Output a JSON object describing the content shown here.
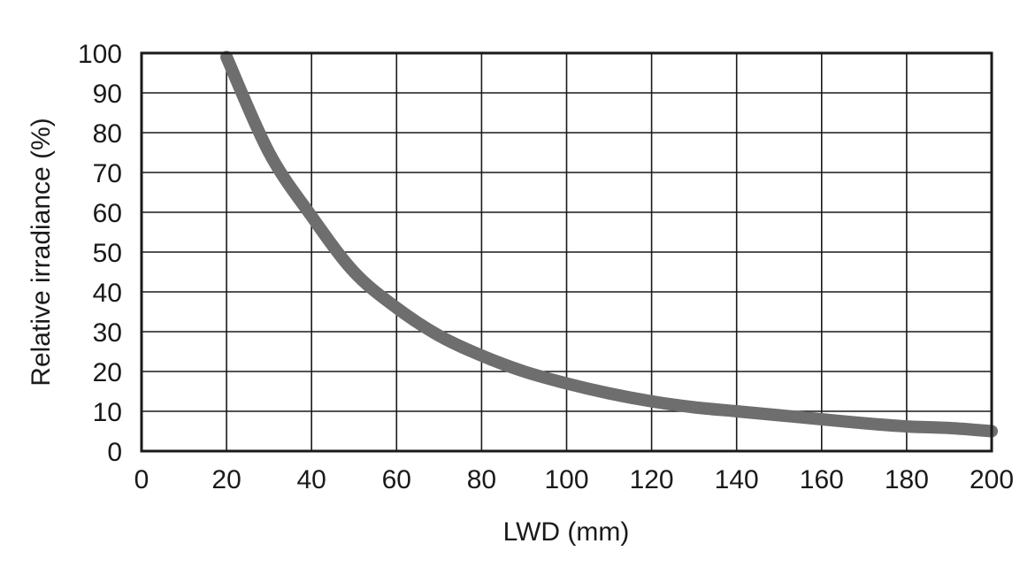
{
  "chart_data": {
    "type": "line",
    "title": "",
    "xlabel": "LWD (mm)",
    "ylabel": "Relative irradiance (%)",
    "xlim": [
      0,
      200
    ],
    "ylim": [
      0,
      100
    ],
    "xticks": [
      0,
      20,
      40,
      60,
      80,
      100,
      120,
      140,
      160,
      180,
      200
    ],
    "yticks": [
      0,
      10,
      20,
      30,
      40,
      50,
      60,
      70,
      80,
      90,
      100
    ],
    "grid": true,
    "series": [
      {
        "x": [
          20,
          30,
          40,
          50,
          60,
          70,
          80,
          90,
          100,
          110,
          120,
          130,
          140,
          150,
          160,
          170,
          180,
          190,
          200
        ],
        "y": [
          99,
          75,
          59,
          45,
          36,
          29,
          24,
          20,
          17,
          14.5,
          12.5,
          11,
          10,
          9,
          8,
          7,
          6.2,
          5.8,
          5
        ],
        "color": "#6e6e6e"
      }
    ],
    "colors": {
      "frame": "#1a1a1a",
      "grid": "#1a1a1a",
      "line": "#6e6e6e"
    }
  }
}
